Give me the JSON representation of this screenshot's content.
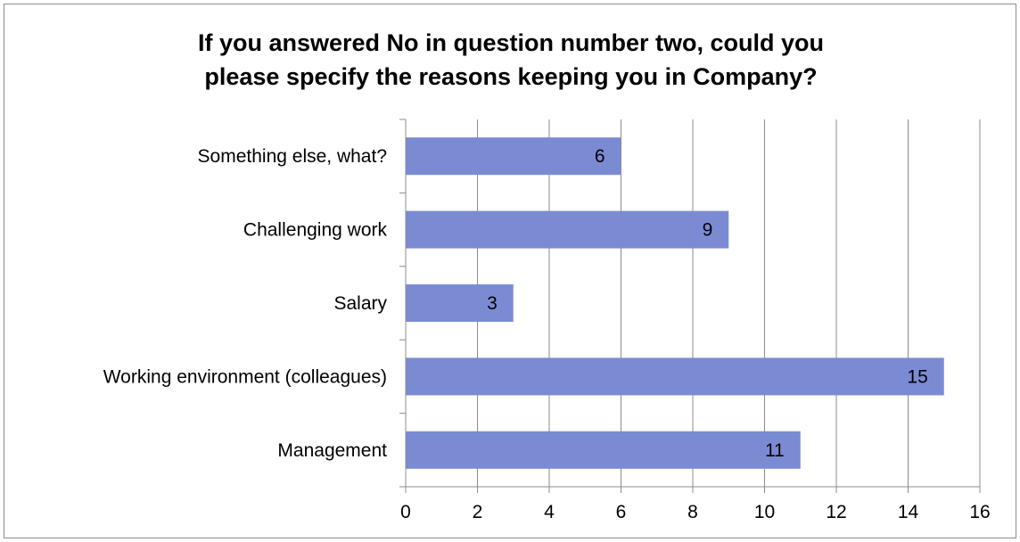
{
  "chart_data": {
    "type": "bar",
    "orientation": "horizontal",
    "title_lines": [
      "If you answered No in question number two, could you",
      "please specify the reasons keeping you in Company?"
    ],
    "categories": [
      "Management",
      "Working environment (colleagues)",
      "Salary",
      "Challenging work",
      "Something else, what?"
    ],
    "values": [
      11,
      15,
      3,
      9,
      6
    ],
    "xlim": [
      0,
      16
    ],
    "xticks": [
      "0",
      "2",
      "4",
      "6",
      "8",
      "10",
      "12",
      "14",
      "16"
    ],
    "grid": "vertical",
    "legend": "none",
    "bar_color": "#7b8bd3",
    "data_labels": true
  }
}
